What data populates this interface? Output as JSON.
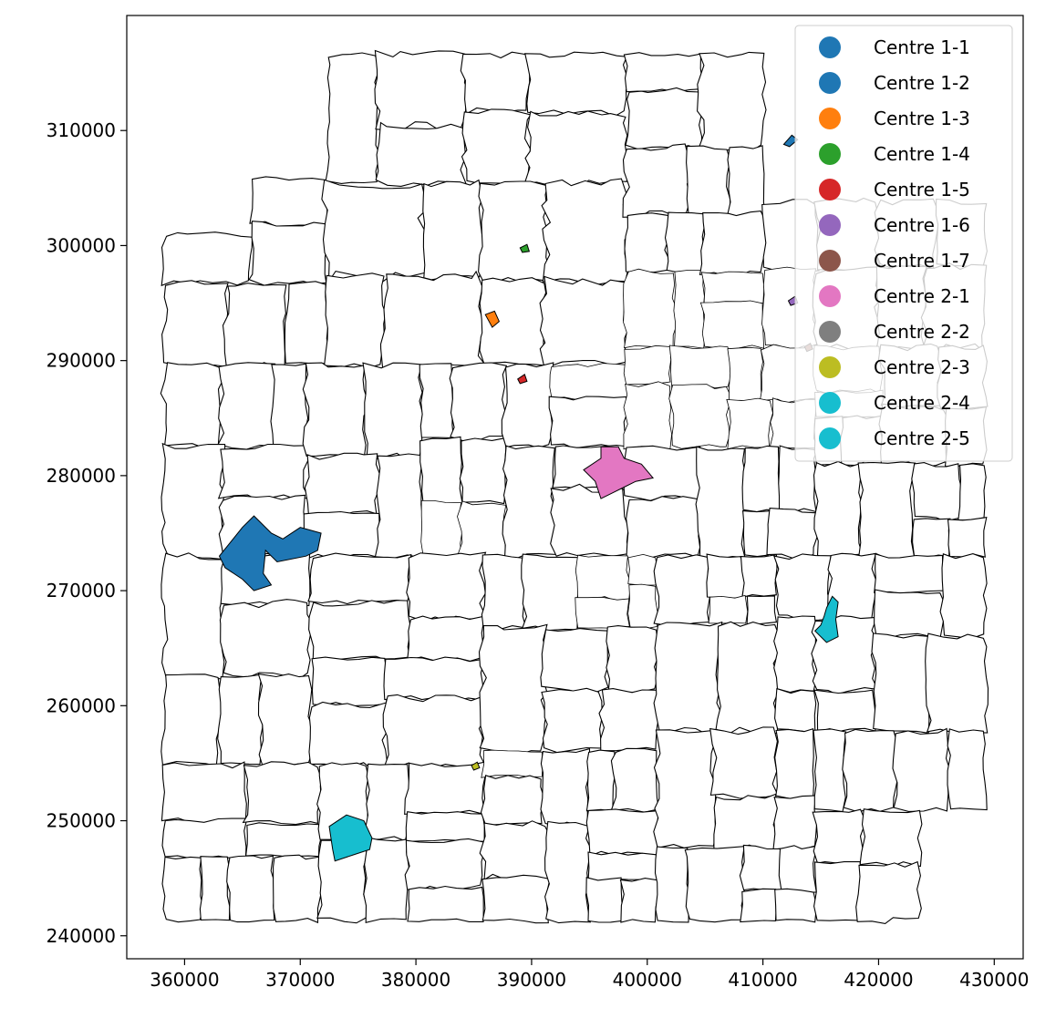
{
  "chart_data": {
    "type": "choropleth-map",
    "title": "",
    "xlabel": "",
    "ylabel": "",
    "xlim": [
      355000,
      432500
    ],
    "ylim": [
      238000,
      320000
    ],
    "x_ticks": [
      360000,
      370000,
      380000,
      390000,
      400000,
      410000,
      420000,
      430000
    ],
    "y_ticks": [
      240000,
      250000,
      260000,
      270000,
      280000,
      290000,
      300000,
      310000
    ],
    "legend_position": "top-right",
    "grid": false,
    "boundary_color": "#000000",
    "base_fill": "#ffffff",
    "legend": [
      {
        "label": "Centre 1-1",
        "color": "#1f77b4"
      },
      {
        "label": "Centre 1-2",
        "color": "#1f77b4"
      },
      {
        "label": "Centre 1-3",
        "color": "#ff7f0e"
      },
      {
        "label": "Centre 1-4",
        "color": "#2ca02c"
      },
      {
        "label": "Centre 1-5",
        "color": "#d62728"
      },
      {
        "label": "Centre 1-6",
        "color": "#9467bd"
      },
      {
        "label": "Centre 1-7",
        "color": "#8c564b"
      },
      {
        "label": "Centre 2-1",
        "color": "#e377c2"
      },
      {
        "label": "Centre 2-2",
        "color": "#7f7f7f"
      },
      {
        "label": "Centre 2-3",
        "color": "#bcbd22"
      },
      {
        "label": "Centre 2-4",
        "color": "#17becf"
      },
      {
        "label": "Centre 2-5",
        "color": "#17becf"
      }
    ],
    "highlighted_regions": [
      {
        "centre": "Centre 1-1",
        "color": "#1f77b4",
        "polygon": [
          [
            363000,
            273000
          ],
          [
            365000,
            275500
          ],
          [
            366000,
            276500
          ],
          [
            367500,
            275000
          ],
          [
            368500,
            274500
          ],
          [
            370000,
            275500
          ],
          [
            371800,
            275000
          ],
          [
            371500,
            273500
          ],
          [
            370500,
            273000
          ],
          [
            368000,
            272500
          ],
          [
            367000,
            273500
          ],
          [
            366800,
            271500
          ],
          [
            367500,
            270500
          ],
          [
            366000,
            270000
          ],
          [
            365000,
            271000
          ],
          [
            363500,
            272000
          ]
        ]
      },
      {
        "centre": "Centre 1-2",
        "color": "#1f77b4",
        "polygon": [
          [
            411800,
            308800
          ],
          [
            412500,
            309600
          ],
          [
            413000,
            309200
          ],
          [
            412300,
            308600
          ]
        ]
      },
      {
        "centre": "Centre 1-3",
        "color": "#ff7f0e",
        "polygon": [
          [
            386000,
            294000
          ],
          [
            386800,
            294300
          ],
          [
            387200,
            293400
          ],
          [
            386600,
            292900
          ]
        ]
      },
      {
        "centre": "Centre 1-4",
        "color": "#2ca02c",
        "polygon": [
          [
            389000,
            299800
          ],
          [
            389600,
            300100
          ],
          [
            389800,
            299500
          ],
          [
            389200,
            299400
          ]
        ]
      },
      {
        "centre": "Centre 1-5",
        "color": "#d62728",
        "polygon": [
          [
            388800,
            288400
          ],
          [
            389400,
            288800
          ],
          [
            389600,
            288200
          ],
          [
            389000,
            288000
          ]
        ]
      },
      {
        "centre": "Centre 1-6",
        "color": "#9467bd",
        "polygon": [
          [
            412200,
            295200
          ],
          [
            412800,
            295600
          ],
          [
            413000,
            295000
          ],
          [
            412400,
            294800
          ]
        ]
      },
      {
        "centre": "Centre 1-7",
        "color": "#8c564b",
        "polygon": [
          [
            413600,
            291200
          ],
          [
            414100,
            291500
          ],
          [
            414300,
            291000
          ],
          [
            413800,
            290800
          ]
        ]
      },
      {
        "centre": "Centre 2-1",
        "color": "#e377c2",
        "polygon": [
          [
            394500,
            280500
          ],
          [
            396000,
            281500
          ],
          [
            396000,
            282500
          ],
          [
            397500,
            282500
          ],
          [
            398000,
            281500
          ],
          [
            399500,
            281000
          ],
          [
            400500,
            279800
          ],
          [
            399000,
            279500
          ],
          [
            398000,
            279000
          ],
          [
            397000,
            278500
          ],
          [
            396000,
            278000
          ],
          [
            395500,
            279500
          ]
        ]
      },
      {
        "centre": "Centre 2-3",
        "color": "#bcbd22",
        "polygon": [
          [
            384800,
            254800
          ],
          [
            385300,
            255100
          ],
          [
            385500,
            254600
          ],
          [
            385000,
            254400
          ]
        ]
      },
      {
        "centre": "Centre 2-4",
        "color": "#17becf",
        "polygon": [
          [
            415500,
            268500
          ],
          [
            416000,
            269500
          ],
          [
            416500,
            269000
          ],
          [
            416300,
            267500
          ],
          [
            416500,
            266000
          ],
          [
            415500,
            265500
          ],
          [
            414500,
            266500
          ],
          [
            415000,
            267000
          ],
          [
            415300,
            267800
          ]
        ]
      },
      {
        "centre": "Centre 2-5",
        "color": "#17becf",
        "polygon": [
          [
            372500,
            249500
          ],
          [
            374000,
            250500
          ],
          [
            375500,
            250000
          ],
          [
            376200,
            248500
          ],
          [
            376000,
            247500
          ],
          [
            374500,
            247000
          ],
          [
            373000,
            246500
          ],
          [
            372800,
            247500
          ]
        ]
      }
    ]
  }
}
